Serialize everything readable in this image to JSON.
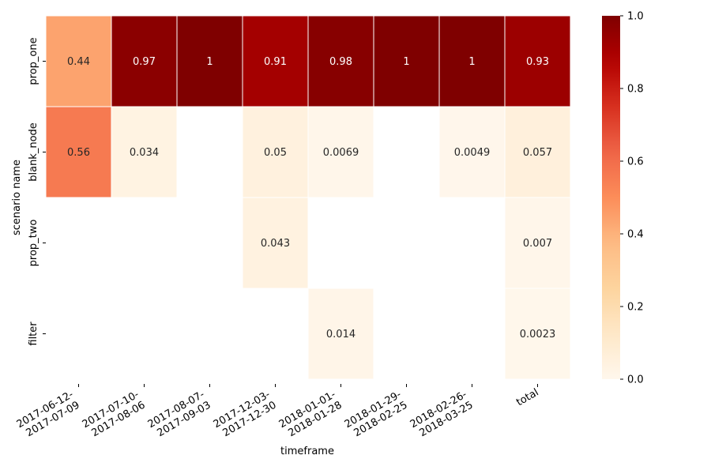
{
  "chart_data": {
    "type": "heatmap",
    "xlabel": "timeframe",
    "ylabel": "scenario name",
    "x_categories": [
      [
        "2017-06-12-",
        "2017-07-09"
      ],
      [
        "2017-07-10-",
        "2017-08-06"
      ],
      [
        "2017-08-07-",
        "2017-09-03"
      ],
      [
        "2017-12-03-",
        "2017-12-30"
      ],
      [
        "2018-01-01-",
        "2018-01-28"
      ],
      [
        "2018-01-29-",
        "2018-02-25"
      ],
      [
        "2018-02-26-",
        "2018-03-25"
      ],
      [
        "total"
      ]
    ],
    "y_categories": [
      "prop_one",
      "blank_node",
      "prop_two",
      "filter"
    ],
    "values": [
      [
        0.44,
        0.97,
        1,
        0.91,
        0.98,
        1,
        1,
        0.93
      ],
      [
        0.56,
        0.034,
        null,
        0.05,
        0.0069,
        null,
        0.0049,
        0.057
      ],
      [
        null,
        null,
        null,
        0.043,
        null,
        null,
        null,
        0.007
      ],
      [
        null,
        null,
        null,
        null,
        0.014,
        null,
        null,
        0.0023
      ]
    ],
    "labels": [
      [
        "0.44",
        "0.97",
        "1",
        "0.91",
        "0.98",
        "1",
        "1",
        "0.93"
      ],
      [
        "0.56",
        "0.034",
        "",
        "0.05",
        "0.0069",
        "",
        "0.0049",
        "0.057"
      ],
      [
        "",
        "",
        "",
        "0.043",
        "",
        "",
        "",
        "0.007"
      ],
      [
        "",
        "",
        "",
        "",
        "0.014",
        "",
        "",
        "0.0023"
      ]
    ],
    "colorbar": {
      "colormap": "OrRd",
      "range": [
        0.0,
        1.0
      ],
      "ticks": [
        "0.0",
        "0.2",
        "0.4",
        "0.6",
        "0.8",
        "1.0"
      ]
    }
  }
}
